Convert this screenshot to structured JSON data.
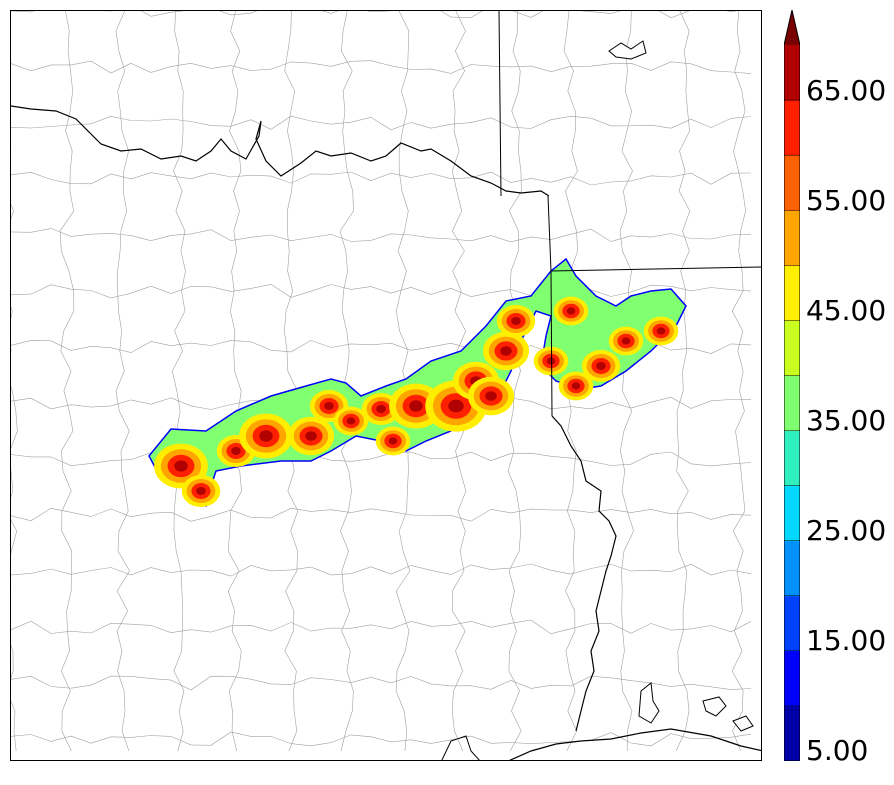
{
  "colorbar": {
    "colors": [
      "#0000a8",
      "#0000ff",
      "#0040ff",
      "#0090ff",
      "#00d8ff",
      "#30f0c0",
      "#80ff70",
      "#c8ff20",
      "#ffee00",
      "#ffa500",
      "#ff6000",
      "#ff2000",
      "#b00000",
      "#7a0000"
    ],
    "tick_labels": [
      "5.00",
      "15.00",
      "25.00",
      "35.00",
      "45.00",
      "55.00",
      "65.00"
    ]
  },
  "map": {
    "line_color_counties": "#a0a0a0",
    "line_color_states": "#000000",
    "field_outline_color": "#0000ff"
  }
}
